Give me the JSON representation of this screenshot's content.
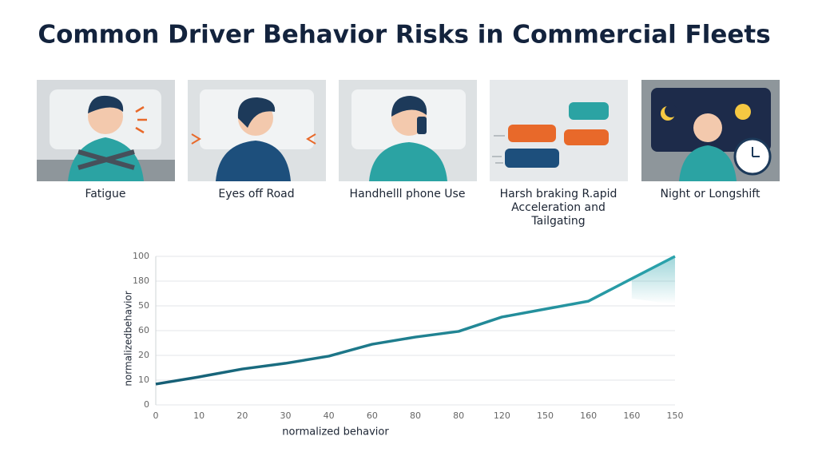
{
  "title": "Common Driver Behavior Risks in Commercial Fleets",
  "panels": [
    {
      "label": [
        "Fatigue"
      ]
    },
    {
      "label": [
        "Eyes off Road"
      ]
    },
    {
      "label": [
        "Handhelll phone Use"
      ]
    },
    {
      "label": [
        "Harsh braking R.apid",
        "Acceleration and",
        "Tailgating"
      ]
    },
    {
      "label": [
        "Night or Longshift"
      ]
    }
  ],
  "chart_data": {
    "type": "line",
    "x_label": "normalized behavior",
    "y_label": "normalizedbehavior",
    "categories": [
      "0",
      "10",
      "20",
      "30",
      "40",
      "60",
      "80",
      "80",
      "120",
      "150",
      "160",
      "160",
      "150"
    ],
    "values": [
      8.4,
      11.3,
      14.5,
      16.8,
      19.7,
      24.5,
      27.4,
      29.7,
      35.5,
      38.7,
      41.9,
      51,
      60
    ],
    "color": "#1f8f9c",
    "ylim": [
      0,
      60
    ],
    "yticks": [
      0,
      10,
      20,
      {
        "value": 30,
        "label": "60"
      },
      {
        "value": 40,
        "label": "50"
      },
      {
        "value": 50,
        "label": "180"
      },
      {
        "value": 60,
        "label": "100"
      }
    ],
    "grid": true
  }
}
